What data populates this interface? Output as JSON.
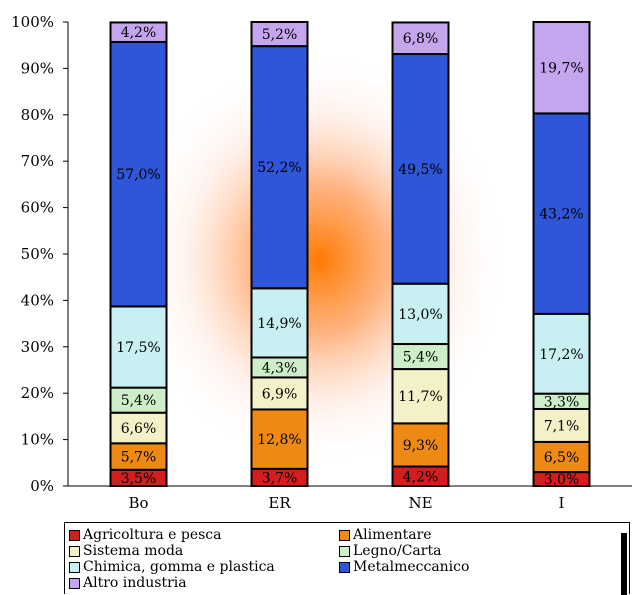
{
  "chart_data": {
    "type": "bar",
    "stacked": "percent",
    "categories": [
      "Bo",
      "ER",
      "NE",
      "I"
    ],
    "ylim": [
      0,
      100
    ],
    "yticks": [
      "0%",
      "10%",
      "20%",
      "30%",
      "40%",
      "50%",
      "60%",
      "70%",
      "80%",
      "90%",
      "100%"
    ],
    "grid": false,
    "legend_position": "bottom",
    "series": [
      {
        "name": "Agricoltura e pesca",
        "color": "#d11f1f",
        "values": [
          3.5,
          3.7,
          4.2,
          3.0
        ],
        "labels": [
          "3,5%",
          "3,7%",
          "4,2%",
          "3,0%"
        ]
      },
      {
        "name": "Alimentare",
        "color": "#ee8a14",
        "values": [
          5.7,
          12.8,
          9.3,
          6.5
        ],
        "labels": [
          "5,7%",
          "12,8%",
          "9,3%",
          "6,5%"
        ]
      },
      {
        "name": "Sistema moda",
        "color": "#f4f1c8",
        "values": [
          6.6,
          6.9,
          11.7,
          7.1
        ],
        "labels": [
          "6,6%",
          "6,9%",
          "11,7%",
          "7,1%"
        ]
      },
      {
        "name": "Legno/Carta",
        "color": "#cdeec8",
        "values": [
          5.4,
          4.3,
          5.4,
          3.3
        ],
        "labels": [
          "5,4%",
          "4,3%",
          "5,4%",
          "3,3%"
        ]
      },
      {
        "name": "Chimica, gomma e plastica",
        "color": "#c8f0f2",
        "values": [
          17.5,
          14.9,
          13.0,
          17.2
        ],
        "labels": [
          "17,5%",
          "14,9%",
          "13,0%",
          "17,2%"
        ]
      },
      {
        "name": "Metalmeccanico",
        "color": "#2f55d8",
        "values": [
          57.0,
          52.2,
          49.5,
          43.2
        ],
        "labels": [
          "57,0%",
          "52,2%",
          "49,5%",
          "43,2%"
        ]
      },
      {
        "name": "Altro industria",
        "color": "#c4a6ee",
        "values": [
          4.2,
          5.2,
          6.8,
          19.7
        ],
        "labels": [
          "4,2%",
          "5,2%",
          "6,8%",
          "19,7%"
        ]
      }
    ]
  }
}
